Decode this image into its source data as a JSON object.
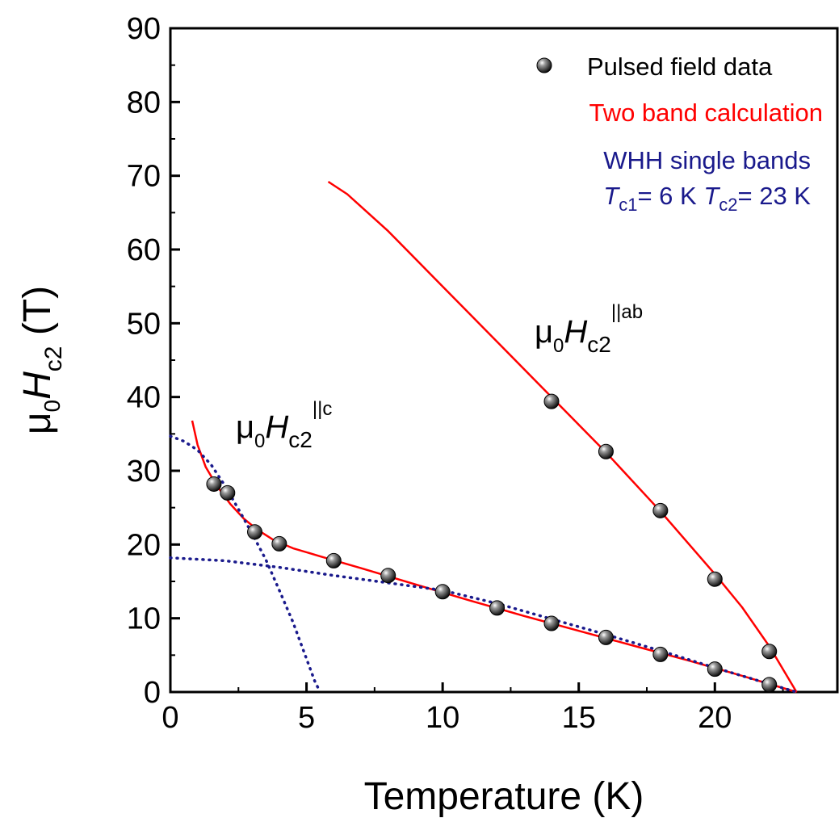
{
  "chart_data": {
    "type": "scatter",
    "title": "",
    "xlabel": "Temperature (K)",
    "ylabel": {
      "mu": "μ",
      "sub0": "0",
      "H": "H",
      "sub": "c2",
      "unit": " (T)"
    },
    "xlim": [
      0,
      24.5
    ],
    "ylim": [
      0,
      90
    ],
    "xticks": [
      0,
      5,
      10,
      15,
      20
    ],
    "yticks": [
      0,
      10,
      20,
      30,
      40,
      50,
      60,
      70,
      80,
      90
    ],
    "colors": {
      "data": "#1a1a1a",
      "two_band": "#ff0000",
      "whh": "#1a1a8c",
      "axis": "#000000"
    },
    "series": [
      {
        "name": "Pulsed field data",
        "kind": "points",
        "field": "||c",
        "x": [
          1.6,
          2.1,
          3.1,
          4.0,
          6.0,
          8.0,
          10.0,
          12.0,
          14.0,
          16.0,
          18.0,
          20.0,
          22.0
        ],
        "y": [
          28.2,
          27.0,
          21.7,
          20.1,
          17.8,
          15.8,
          13.6,
          11.4,
          9.3,
          7.4,
          5.1,
          3.1,
          1.0
        ]
      },
      {
        "name": "Pulsed field data",
        "kind": "points",
        "field": "||ab",
        "x": [
          14.0,
          16.0,
          18.0,
          20.0,
          22.0
        ],
        "y": [
          39.4,
          32.6,
          24.6,
          15.3,
          5.5
        ]
      },
      {
        "name": "Two band calculation",
        "kind": "line",
        "field": "||ab",
        "x": [
          5.8,
          6.5,
          8.0,
          10.0,
          12.0,
          14.0,
          16.0,
          18.0,
          20.0,
          21.0,
          22.0,
          23.0
        ],
        "y": [
          69.2,
          67.5,
          62.5,
          55.0,
          47.5,
          40.0,
          32.5,
          24.5,
          16.0,
          11.5,
          6.2,
          0.0
        ]
      },
      {
        "name": "Two band calculation",
        "kind": "line",
        "field": "||c",
        "x": [
          0.8,
          1.0,
          1.3,
          1.7,
          2.2,
          2.7,
          3.2,
          3.8,
          4.5,
          5.5,
          7.0,
          9.0,
          11.0,
          13.0,
          15.0,
          17.0,
          19.0,
          21.0,
          22.0,
          23.0
        ],
        "y": [
          36.8,
          33.5,
          30.5,
          28.0,
          25.5,
          23.5,
          22.0,
          20.6,
          19.5,
          18.4,
          16.8,
          14.6,
          12.4,
          10.3,
          8.3,
          6.3,
          4.3,
          2.2,
          1.1,
          0.0
        ]
      },
      {
        "name": "WHH single band Tc1",
        "kind": "dotted",
        "x": [
          0.0,
          0.5,
          1.0,
          1.5,
          2.0,
          2.5,
          3.0,
          3.5,
          4.0,
          4.5,
          5.0,
          5.3,
          5.5
        ],
        "y": [
          34.7,
          34.0,
          32.8,
          30.8,
          28.0,
          24.8,
          21.5,
          18.0,
          13.8,
          9.5,
          4.5,
          1.5,
          0.0
        ]
      },
      {
        "name": "WHH single band Tc2",
        "kind": "dotted",
        "x": [
          0.0,
          2.0,
          4.0,
          6.0,
          8.0,
          10.0,
          12.0,
          14.0,
          16.0,
          18.0,
          20.0,
          22.0,
          23.0
        ],
        "y": [
          18.2,
          17.8,
          16.9,
          15.8,
          14.8,
          13.8,
          12.0,
          9.9,
          7.8,
          5.6,
          3.3,
          1.1,
          0.0
        ]
      }
    ],
    "legend": {
      "position": "top-right",
      "data_label": "Pulsed field data",
      "two_band_label": "Two band calculation",
      "whh_line1": "WHH single bands",
      "whh_T1": "T",
      "whh_T1_sub": "c1",
      "whh_T1_val": "= 6 K ",
      "whh_T2": "T",
      "whh_T2_sub": "c2",
      "whh_T2_val": "= 23 K"
    },
    "annotations": {
      "ab": {
        "mu": "μ",
        "sub0": "0",
        "H": "H",
        "sub": "c2",
        "sup": "||ab"
      },
      "c": {
        "mu": "μ",
        "sub0": "0",
        "H": "H",
        "sub": "c2",
        "sup": "||c"
      }
    }
  }
}
